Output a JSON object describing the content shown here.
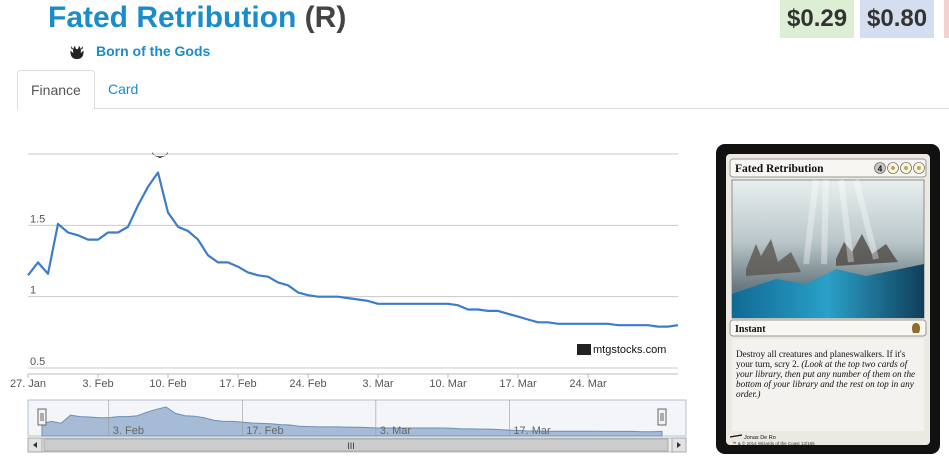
{
  "header": {
    "card_name": "Fated Retribution",
    "rarity": "(R)",
    "set_name": "Born of the Gods",
    "set_icon": "born-of-the-gods-set-icon",
    "prices": {
      "low": "$0.29",
      "avg": "$0.80"
    },
    "colors": {
      "title": "#1a8ccb",
      "low_bg": "#dcefd4",
      "avg_bg": "#d5def1"
    }
  },
  "tabs": [
    {
      "label": "Finance",
      "active": true
    },
    {
      "label": "Card",
      "active": false
    }
  ],
  "chart_data": {
    "type": "line",
    "x_ticks": [
      "27. Jan",
      "3. Feb",
      "10. Feb",
      "17. Feb",
      "24. Feb",
      "3. Mar",
      "10. Mar",
      "17. Mar",
      "24. Mar"
    ],
    "y_ticks": [
      "0.5",
      "1",
      "1.5"
    ],
    "ylim": [
      0.5,
      2.0
    ],
    "grid": true,
    "credit": "mtgstocks.com",
    "navigator_ticks": [
      "3. Feb",
      "17. Feb",
      "3. Mar",
      "17. Mar"
    ],
    "line_color": "#3d7cc9",
    "series": [
      {
        "x": [
          0,
          1,
          2,
          3,
          4,
          5,
          6,
          7,
          8,
          9,
          10,
          11,
          12,
          13,
          14,
          15,
          16,
          17,
          18,
          19,
          20,
          21,
          22,
          23,
          24,
          25,
          26,
          27,
          28,
          29,
          30,
          31,
          32,
          33,
          34,
          35,
          36,
          37,
          38,
          39,
          40,
          41,
          42,
          43,
          44,
          45,
          46,
          47,
          48,
          49,
          50,
          51,
          52,
          53,
          54,
          55,
          56,
          57,
          58,
          59,
          60,
          61,
          62,
          63,
          64,
          65
        ],
        "values": [
          1.15,
          1.24,
          1.16,
          1.51,
          1.45,
          1.43,
          1.4,
          1.4,
          1.45,
          1.45,
          1.49,
          1.64,
          1.77,
          1.87,
          1.59,
          1.49,
          1.46,
          1.4,
          1.29,
          1.24,
          1.24,
          1.21,
          1.17,
          1.15,
          1.14,
          1.1,
          1.08,
          1.03,
          1.01,
          1.0,
          1.0,
          1.0,
          0.99,
          0.98,
          0.97,
          0.95,
          0.95,
          0.95,
          0.95,
          0.95,
          0.95,
          0.95,
          0.95,
          0.94,
          0.91,
          0.91,
          0.9,
          0.9,
          0.88,
          0.86,
          0.84,
          0.82,
          0.82,
          0.81,
          0.81,
          0.81,
          0.81,
          0.81,
          0.81,
          0.8,
          0.8,
          0.8,
          0.8,
          0.79,
          0.79,
          0.8
        ]
      }
    ]
  },
  "scrollbar": {
    "grip": "III"
  },
  "card_image": {
    "name": "Fated Retribution",
    "mana": "4WWW",
    "type_line": "Instant",
    "rules": "Destroy all creatures and planeswalkers. If it's your turn, scry 2.",
    "reminder": "(Look at the top two cards of your library, then put any number of them on the bottom of your library and the rest on top in any order.)",
    "artist": "Jonas De Ro",
    "copyright": "™ & © 2014 Wizards of the Coast 13/165"
  }
}
